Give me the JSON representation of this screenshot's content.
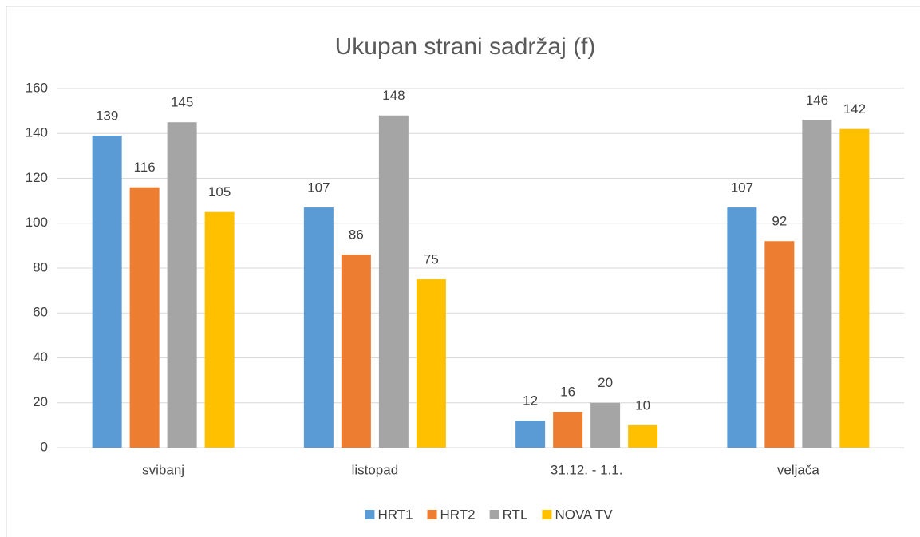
{
  "chart_data": {
    "type": "bar",
    "title": "Ukupan strani sadržaj (f)",
    "categories": [
      "svibanj",
      "listopad",
      "31.12. - 1.1.",
      "veljača"
    ],
    "series": [
      {
        "name": "HRT1",
        "color": "#5b9bd5",
        "values": [
          139,
          107,
          12,
          107
        ]
      },
      {
        "name": "HRT2",
        "color": "#ed7d31",
        "values": [
          116,
          86,
          16,
          92
        ]
      },
      {
        "name": "RTL",
        "color": "#a5a5a5",
        "values": [
          145,
          148,
          20,
          146
        ]
      },
      {
        "name": "NOVA TV",
        "color": "#ffc000",
        "values": [
          105,
          75,
          10,
          142
        ]
      }
    ],
    "ylim": [
      0,
      160
    ],
    "yticks": [
      0,
      20,
      40,
      60,
      80,
      100,
      120,
      140,
      160
    ],
    "grid": true,
    "legend": "bottom"
  }
}
